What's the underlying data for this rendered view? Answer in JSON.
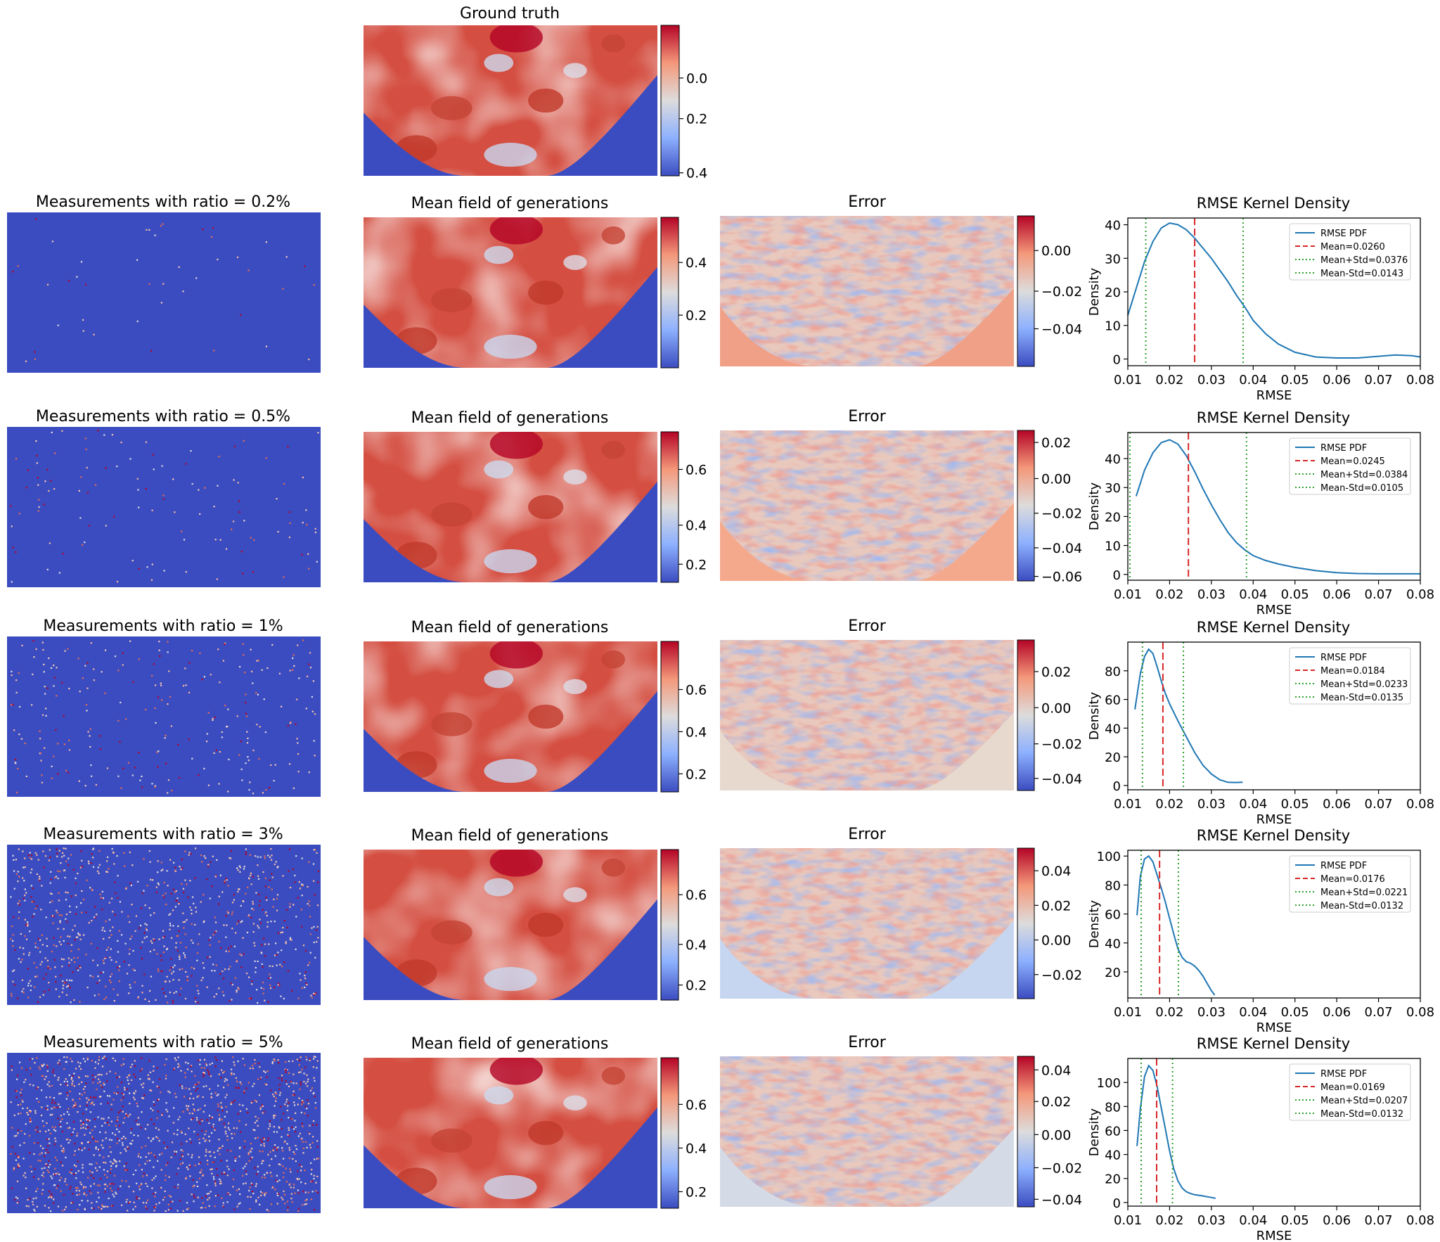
{
  "figure": {
    "ground_truth_title": "Ground truth",
    "ground_truth_colorbar_ticks": [
      "0.0",
      "0.2",
      "0.4"
    ],
    "rows": [
      {
        "measurements_title": "Measurements with ratio = 0.2%",
        "mean_field_title": "Mean field of generations",
        "mean_field_colorbar_ticks": [
          "0.2",
          "0.4"
        ],
        "error_title": "Error",
        "error_colorbar_ticks": [
          "0.00",
          "−0.02",
          "−0.04"
        ],
        "kde_title": "RMSE Kernel Density"
      },
      {
        "measurements_title": "Measurements with ratio = 0.5%",
        "mean_field_title": "Mean field of generations",
        "mean_field_colorbar_ticks": [
          "0.2",
          "0.4",
          "0.6"
        ],
        "error_title": "Error",
        "error_colorbar_ticks": [
          "0.02",
          "0.00",
          "−0.02",
          "−0.04",
          "−0.06"
        ],
        "kde_title": "RMSE Kernel Density"
      },
      {
        "measurements_title": "Measurements with ratio = 1%",
        "mean_field_title": "Mean field of generations",
        "mean_field_colorbar_ticks": [
          "0.2",
          "0.4",
          "0.6"
        ],
        "error_title": "Error",
        "error_colorbar_ticks": [
          "0.02",
          "0.00",
          "−0.02",
          "−0.04"
        ],
        "kde_title": "RMSE Kernel Density"
      },
      {
        "measurements_title": "Measurements with ratio = 3%",
        "mean_field_title": "Mean field of generations",
        "mean_field_colorbar_ticks": [
          "0.2",
          "0.4",
          "0.6"
        ],
        "error_title": "Error",
        "error_colorbar_ticks": [
          "0.04",
          "0.02",
          "0.00",
          "−0.02"
        ],
        "kde_title": "RMSE Kernel Density"
      },
      {
        "measurements_title": "Measurements with ratio = 5%",
        "mean_field_title": "Mean field of generations",
        "mean_field_colorbar_ticks": [
          "0.2",
          "0.4",
          "0.6"
        ],
        "error_title": "Error",
        "error_colorbar_ticks": [
          "0.04",
          "0.02",
          "0.00",
          "−0.02",
          "−0.04"
        ],
        "kde_title": "RMSE Kernel Density"
      }
    ]
  },
  "colors": {
    "background_blue": "#3b4cc0",
    "warm_red": "#d44e41",
    "dark_red": "#b40426",
    "neutral": "#dddcdc",
    "kde_line": "#1f77b4",
    "mean_line": "#d62728",
    "std_line": "#2ca02c"
  },
  "chart_data": [
    {
      "type": "line",
      "title": "RMSE Kernel Density",
      "xlabel": "RMSE",
      "ylabel": "Density",
      "xlim": [
        0.01,
        0.08
      ],
      "ylim": [
        -2,
        42
      ],
      "xticks": [
        "0.01",
        "0.02",
        "0.03",
        "0.04",
        "0.05",
        "0.06",
        "0.07",
        "0.08"
      ],
      "yticks": [
        0,
        10,
        20,
        30,
        40
      ],
      "legend_position": "top-right",
      "series": [
        {
          "name": "RMSE PDF",
          "x": [
            0.01,
            0.012,
            0.014,
            0.016,
            0.018,
            0.02,
            0.022,
            0.024,
            0.026,
            0.028,
            0.03,
            0.032,
            0.034,
            0.036,
            0.038,
            0.04,
            0.043,
            0.046,
            0.05,
            0.055,
            0.06,
            0.065,
            0.07,
            0.074,
            0.078,
            0.08
          ],
          "y": [
            13,
            21,
            29,
            35,
            39,
            40.5,
            40,
            38.5,
            36,
            33,
            30,
            26.5,
            23,
            19,
            15.5,
            11.5,
            7.5,
            4.5,
            2,
            0.6,
            0.3,
            0.3,
            0.8,
            1.2,
            1,
            0.6
          ]
        }
      ],
      "vlines": [
        {
          "name": "Mean=0.0260",
          "x": 0.026,
          "style": "mean"
        },
        {
          "name": "Mean+Std=0.0376",
          "x": 0.0376,
          "style": "std"
        },
        {
          "name": "Mean-Std=0.0143",
          "x": 0.0143,
          "style": "std"
        }
      ]
    },
    {
      "type": "line",
      "title": "RMSE Kernel Density",
      "xlabel": "RMSE",
      "ylabel": "Density",
      "xlim": [
        0.01,
        0.08
      ],
      "ylim": [
        -2,
        49
      ],
      "xticks": [
        "0.01",
        "0.02",
        "0.03",
        "0.04",
        "0.05",
        "0.06",
        "0.07",
        "0.08"
      ],
      "yticks": [
        0,
        10,
        20,
        30,
        40
      ],
      "legend_position": "top-right",
      "series": [
        {
          "name": "RMSE PDF",
          "x": [
            0.012,
            0.014,
            0.016,
            0.018,
            0.02,
            0.022,
            0.024,
            0.026,
            0.028,
            0.03,
            0.032,
            0.034,
            0.036,
            0.038,
            0.04,
            0.043,
            0.046,
            0.05,
            0.055,
            0.06,
            0.065,
            0.07,
            0.075,
            0.08
          ],
          "y": [
            27,
            36,
            42,
            45.5,
            46.5,
            45,
            41,
            35.5,
            29.5,
            24,
            19,
            14.5,
            11,
            8.5,
            6.5,
            4.8,
            3.6,
            2.4,
            1.3,
            0.6,
            0.3,
            0.2,
            0.2,
            0.2
          ]
        }
      ],
      "vlines": [
        {
          "name": "Mean=0.0245",
          "x": 0.0245,
          "style": "mean"
        },
        {
          "name": "Mean+Std=0.0384",
          "x": 0.0384,
          "style": "std"
        },
        {
          "name": "Mean-Std=0.0105",
          "x": 0.0105,
          "style": "std"
        }
      ]
    },
    {
      "type": "line",
      "title": "RMSE Kernel Density",
      "xlabel": "RMSE",
      "ylabel": "Density",
      "xlim": [
        0.01,
        0.08
      ],
      "ylim": [
        -3,
        100
      ],
      "xticks": [
        "0.01",
        "0.02",
        "0.03",
        "0.04",
        "0.05",
        "0.06",
        "0.07",
        "0.08"
      ],
      "yticks": [
        0,
        20,
        40,
        60,
        80
      ],
      "legend_position": "top-right",
      "series": [
        {
          "name": "RMSE PDF",
          "x": [
            0.0117,
            0.013,
            0.014,
            0.015,
            0.016,
            0.017,
            0.018,
            0.019,
            0.02,
            0.022,
            0.024,
            0.026,
            0.028,
            0.03,
            0.032,
            0.034,
            0.036,
            0.0375
          ],
          "y": [
            53,
            78,
            90,
            95,
            92,
            83,
            73,
            64,
            57,
            45,
            34,
            23,
            14,
            8,
            4,
            2.2,
            2.1,
            2.3
          ]
        }
      ],
      "vlines": [
        {
          "name": "Mean=0.0184",
          "x": 0.0184,
          "style": "mean"
        },
        {
          "name": "Mean+Std=0.0233",
          "x": 0.0233,
          "style": "std"
        },
        {
          "name": "Mean-Std=0.0135",
          "x": 0.0135,
          "style": "std"
        }
      ]
    },
    {
      "type": "line",
      "title": "RMSE Kernel Density",
      "xlabel": "RMSE",
      "ylabel": "Density",
      "xlim": [
        0.01,
        0.08
      ],
      "ylim": [
        2,
        104
      ],
      "xticks": [
        "0.01",
        "0.02",
        "0.03",
        "0.04",
        "0.05",
        "0.06",
        "0.07",
        "0.08"
      ],
      "yticks": [
        20,
        40,
        60,
        80,
        100
      ],
      "legend_position": "top-right",
      "series": [
        {
          "name": "RMSE PDF",
          "x": [
            0.0122,
            0.013,
            0.014,
            0.015,
            0.016,
            0.017,
            0.018,
            0.019,
            0.02,
            0.021,
            0.022,
            0.023,
            0.024,
            0.025,
            0.026,
            0.027,
            0.028,
            0.029,
            0.03,
            0.0308
          ],
          "y": [
            59,
            86,
            98,
            100,
            96,
            87,
            78,
            68,
            57,
            46,
            36,
            30,
            27,
            26,
            24,
            21,
            17,
            12,
            7,
            4
          ]
        }
      ],
      "vlines": [
        {
          "name": "Mean=0.0176",
          "x": 0.0176,
          "style": "mean"
        },
        {
          "name": "Mean+Std=0.0221",
          "x": 0.0221,
          "style": "std"
        },
        {
          "name": "Mean-Std=0.0132",
          "x": 0.0132,
          "style": "std"
        }
      ]
    },
    {
      "type": "line",
      "title": "RMSE Kernel Density",
      "xlabel": "RMSE",
      "ylabel": "Density",
      "xlim": [
        0.01,
        0.08
      ],
      "ylim": [
        -3,
        120
      ],
      "xticks": [
        "0.01",
        "0.02",
        "0.03",
        "0.04",
        "0.05",
        "0.06",
        "0.07",
        "0.08"
      ],
      "yticks": [
        0,
        20,
        40,
        60,
        80,
        100
      ],
      "legend_position": "top-right",
      "series": [
        {
          "name": "RMSE PDF",
          "x": [
            0.0122,
            0.013,
            0.014,
            0.015,
            0.016,
            0.017,
            0.018,
            0.019,
            0.02,
            0.021,
            0.022,
            0.023,
            0.024,
            0.025,
            0.026,
            0.027,
            0.028,
            0.029,
            0.03,
            0.031
          ],
          "y": [
            47,
            78,
            105,
            114,
            110,
            97,
            79,
            61,
            43,
            28,
            18,
            12,
            9,
            7.5,
            6.5,
            6,
            5.5,
            4.8,
            4.2,
            3.5
          ]
        }
      ],
      "vlines": [
        {
          "name": "Mean=0.0169",
          "x": 0.0169,
          "style": "mean"
        },
        {
          "name": "Mean+Std=0.0207",
          "x": 0.0207,
          "style": "std"
        },
        {
          "name": "Mean-Std=0.0132",
          "x": 0.0132,
          "style": "std"
        }
      ]
    }
  ]
}
